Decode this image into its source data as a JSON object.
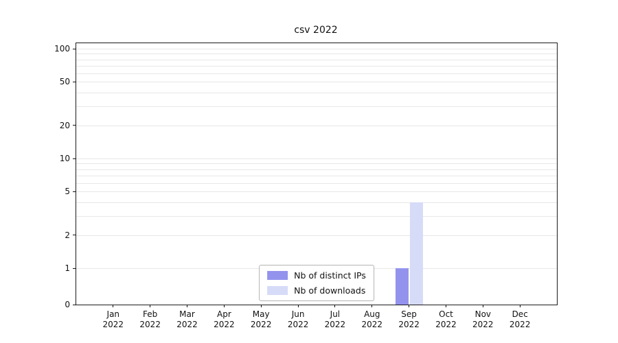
{
  "chart_data": {
    "type": "bar",
    "title": "csv 2022",
    "xlabel": "",
    "ylabel": "",
    "categories": [
      "Jan",
      "Feb",
      "Mar",
      "Apr",
      "May",
      "Jun",
      "Jul",
      "Aug",
      "Sep",
      "Oct",
      "Nov",
      "Dec"
    ],
    "category_year": "2022",
    "series": [
      {
        "name": "Nb of distinct IPs",
        "color": "#9393ee",
        "values": [
          0,
          0,
          0,
          0,
          0,
          0,
          0,
          0,
          1,
          0,
          0,
          0
        ]
      },
      {
        "name": "Nb of downloads",
        "color": "#d6dbf8",
        "values": [
          0,
          0,
          0,
          0,
          0,
          0,
          0,
          0,
          4,
          0,
          0,
          0
        ]
      }
    ],
    "yscale": "symlog",
    "ylim": [
      0,
      112
    ],
    "yticks": [
      0,
      1,
      2,
      5,
      10,
      20,
      50,
      100
    ],
    "gridlines": [
      1,
      2,
      3,
      4,
      5,
      6,
      7,
      8,
      9,
      10,
      20,
      30,
      40,
      50,
      60,
      70,
      80,
      90,
      100
    ],
    "grid": true,
    "legend": {
      "position": "lower center",
      "entries": [
        "Nb of distinct IPs",
        "Nb of downloads"
      ]
    }
  }
}
